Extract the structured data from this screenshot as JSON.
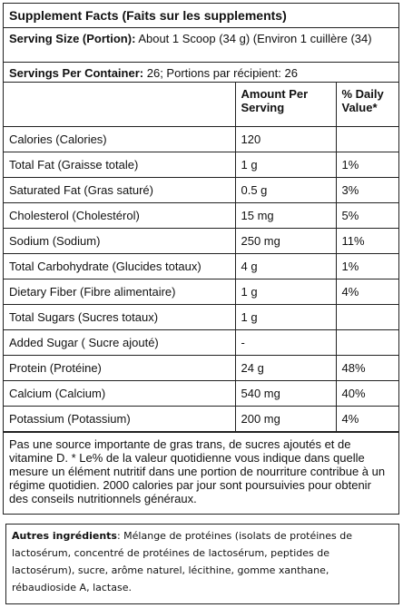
{
  "title": "Supplement Facts (Faits sur les supplements)",
  "serving_size": {
    "label": "Serving Size (Portion):",
    "value": "About 1 Scoop (34 g) (Environ 1 cuillère (34)"
  },
  "servings_per_container": {
    "label": "Servings Per Container:",
    "value": "26; Portions par récipient: 26"
  },
  "table": {
    "headers": [
      "",
      "Amount Per Serving",
      "% Daily Value*"
    ],
    "rows": [
      {
        "name": "Calories (Calories)",
        "amount": "120",
        "dv": ""
      },
      {
        "name": "Total Fat (Graisse totale)",
        "amount": "1 g",
        "dv": "1%"
      },
      {
        "name": "Saturated Fat (Gras saturé)",
        "amount": "0.5 g",
        "dv": "3%"
      },
      {
        "name": "Cholesterol (Cholestérol)",
        "amount": "15 mg",
        "dv": "5%"
      },
      {
        "name": "Sodium (Sodium)",
        "amount": "250 mg",
        "dv": "11%"
      },
      {
        "name": "Total Carbohydrate (Glucides totaux)",
        "amount": "4 g",
        "dv": "1%"
      },
      {
        "name": "Dietary Fiber (Fibre alimentaire)",
        "amount": "1 g",
        "dv": "4%"
      },
      {
        "name": "Total Sugars (Sucres totaux)",
        "amount": "1 g",
        "dv": ""
      },
      {
        "name": "Added Sugar ( Sucre ajouté)",
        "amount": "-",
        "dv": ""
      },
      {
        "name": "Protein (Protéine)",
        "amount": "24 g",
        "dv": "48%"
      },
      {
        "name": "Calcium (Calcium)",
        "amount": "540 mg",
        "dv": "40%"
      },
      {
        "name": "Potassium (Potassium)",
        "amount": "200 mg",
        "dv": "4%"
      }
    ]
  },
  "footnote": "Pas une source importante de gras trans, de sucres ajoutés et de vitamine D. * Le% de la valeur quotidienne vous indique dans quelle mesure un élément nutritif dans une portion de nourriture contribue à un régime quotidien. 2000 calories par jour sont poursuivies pour obtenir des conseils nutritionnels généraux.",
  "ingredients": {
    "label": "Autres ingrédients",
    "text": ": Mélange de protéines (isolats de protéines de lactosérum, concentré de protéines de lactosérum, peptides de lactosérum), sucre, arôme naturel, lécithine, gomme xanthane, rébaudioside A, lactase."
  }
}
